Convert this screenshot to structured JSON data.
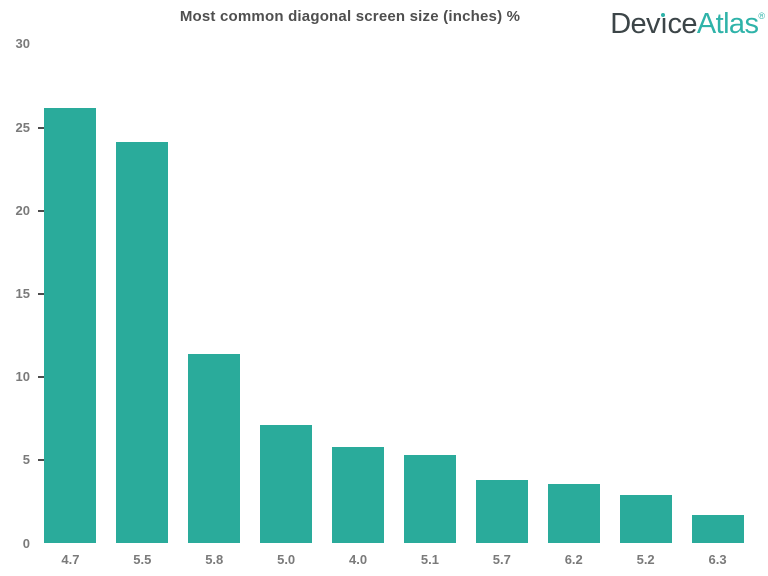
{
  "title": "Most common diagonal screen size (inches) %",
  "logo": {
    "part1": "Dev",
    "i_char": "ı",
    "part2": "ce",
    "part3": "Atlas",
    "mark": "®"
  },
  "colors": {
    "bar": "#2AAB9B",
    "logo_dark": "#3C4548",
    "logo_teal": "#2FB3A9",
    "title": "#4F4F4F",
    "axis_label": "#7A7A7A",
    "tick": "#4D4D4D",
    "background": "#FFFFFF"
  },
  "chart_data": {
    "type": "bar",
    "title": "Most common diagonal screen size (inches) %",
    "categories": [
      "4.7",
      "5.5",
      "5.8",
      "5.0",
      "4.0",
      "5.1",
      "5.7",
      "6.2",
      "5.2",
      "6.3"
    ],
    "values": [
      26.2,
      24.1,
      11.4,
      7.1,
      5.8,
      5.3,
      3.8,
      3.6,
      2.9,
      1.7
    ],
    "xlabel": "",
    "ylabel": "",
    "ylim": [
      0,
      30
    ],
    "yticks": [
      0,
      5,
      10,
      15,
      20,
      25,
      30
    ],
    "yticks_with_marks": [
      5,
      10,
      15,
      20,
      25
    ],
    "grid": false,
    "legend": "none",
    "bar_color": "#2AAB9B"
  }
}
